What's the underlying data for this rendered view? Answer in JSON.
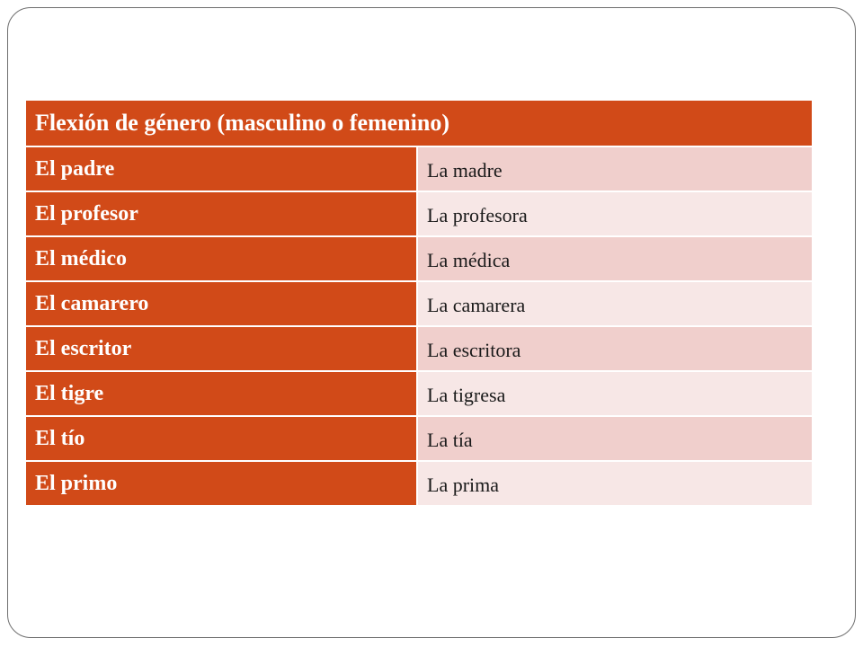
{
  "table": {
    "header": "Flexión de género (masculino o femenino)",
    "rows": [
      {
        "masculine": "El padre",
        "feminine": "La madre"
      },
      {
        "masculine": "El profesor",
        "feminine": "La profesora"
      },
      {
        "masculine": "El médico",
        "feminine": "La médica"
      },
      {
        "masculine": "El camarero",
        "feminine": "La camarera"
      },
      {
        "masculine": "El escritor",
        "feminine": "La escritora"
      },
      {
        "masculine": "El tigre",
        "feminine": "La tigresa"
      },
      {
        "masculine": "El tío",
        "feminine": "La tía"
      },
      {
        "masculine": "El primo",
        "feminine": "La prima"
      }
    ]
  },
  "colors": {
    "header_bg": "#d14a18",
    "row_light": "#f7e7e6",
    "row_dark": "#f0cfcc"
  }
}
